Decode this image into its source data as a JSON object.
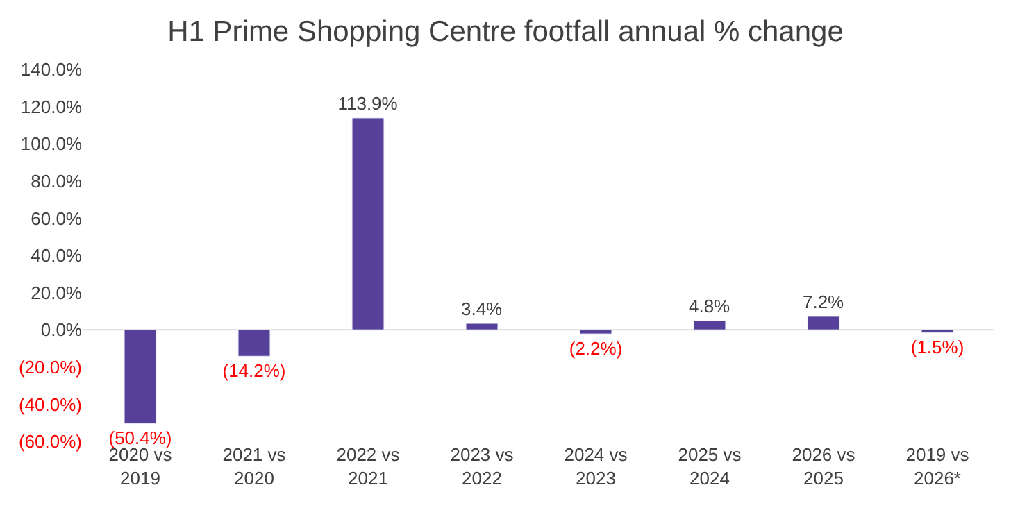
{
  "chart_data": {
    "type": "bar",
    "title": "H1 Prime Shopping Centre footfall annual % change",
    "categories": [
      "2020 vs 2019",
      "2021 vs 2020",
      "2022 vs 2021",
      "2023 vs 2022",
      "2024 vs 2023",
      "2025 vs 2024",
      "2026 vs 2025",
      "2019 vs 2026*"
    ],
    "values": [
      -50.4,
      -14.2,
      113.9,
      3.4,
      -2.2,
      4.8,
      7.2,
      -1.5
    ],
    "value_labels": [
      "(50.4%)",
      "(14.2%)",
      "113.9%",
      "3.4%",
      "(2.2%)",
      "4.8%",
      "7.2%",
      "(1.5%)"
    ],
    "color": "#574099",
    "ylim": [
      -60,
      140
    ],
    "yticks": [
      {
        "value": -60,
        "label": "(60.0%)"
      },
      {
        "value": -40,
        "label": "(40.0%)"
      },
      {
        "value": -20,
        "label": "(20.0%)"
      },
      {
        "value": 0,
        "label": "0.0%"
      },
      {
        "value": 20,
        "label": "20.0%"
      },
      {
        "value": 40,
        "label": "40.0%"
      },
      {
        "value": 60,
        "label": "60.0%"
      },
      {
        "value": 80,
        "label": "80.0%"
      },
      {
        "value": 100,
        "label": "100.0%"
      },
      {
        "value": 120,
        "label": "120.0%"
      },
      {
        "value": 140,
        "label": "140.0%"
      }
    ],
    "ref_lines": [
      {
        "axis": "y",
        "value": 0,
        "color": "#d9d9d9"
      }
    ],
    "legend": false
  }
}
